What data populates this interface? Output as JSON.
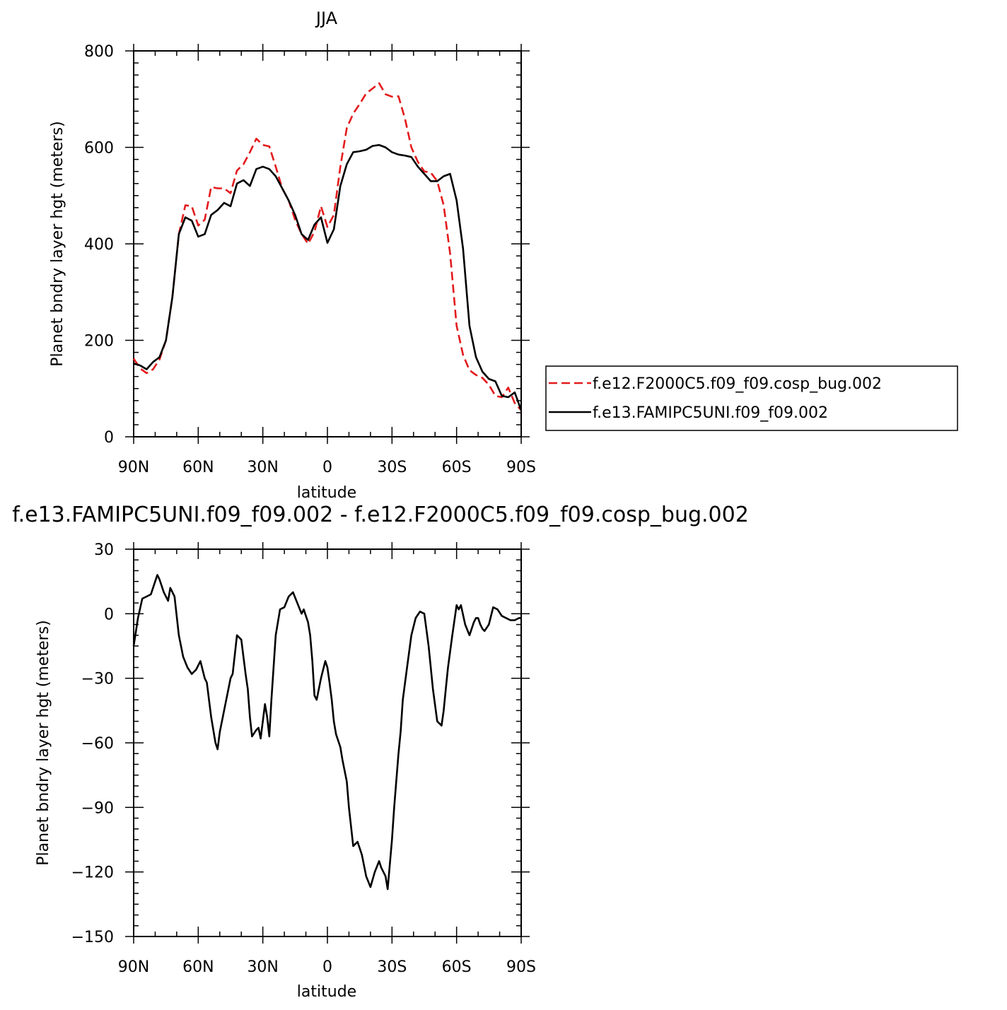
{
  "chart_data": [
    {
      "type": "line",
      "title": "JJA",
      "xlabel": "latitude",
      "ylabel": "Planet bndry layer hgt (meters)",
      "xlim": [
        90,
        -90
      ],
      "ylim": [
        0,
        800
      ],
      "xticks": [
        90,
        60,
        30,
        0,
        -30,
        -60,
        -90
      ],
      "xtick_labels": [
        "90N",
        "60N",
        "30N",
        "0",
        "30S",
        "60S",
        "90S"
      ],
      "yticks": [
        0,
        200,
        400,
        600,
        800
      ],
      "ytick_labels": [
        "0",
        "200",
        "400",
        "600",
        "800"
      ],
      "legend_position": "right",
      "series": [
        {
          "name": "f.e12.F2000C5.f09_f09.cosp_bug.002",
          "color": "#e31a1c",
          "dash": "dashed",
          "x": [
            90,
            87,
            84,
            81,
            78,
            75,
            72,
            69,
            66,
            63,
            60,
            57,
            54,
            51,
            48,
            45,
            42,
            39,
            36,
            33,
            30,
            27,
            24,
            21,
            18,
            15,
            12,
            9,
            6,
            3,
            0,
            -3,
            -6,
            -9,
            -12,
            -15,
            -18,
            -21,
            -24,
            -27,
            -30,
            -33,
            -36,
            -39,
            -42,
            -45,
            -48,
            -51,
            -54,
            -57,
            -60,
            -63,
            -66,
            -69,
            -72,
            -75,
            -78,
            -81,
            -84,
            -87,
            -90
          ],
          "y": [
            162,
            142,
            132,
            140,
            160,
            200,
            290,
            420,
            480,
            478,
            438,
            450,
            518,
            515,
            515,
            505,
            552,
            565,
            590,
            618,
            605,
            602,
            560,
            515,
            490,
            450,
            420,
            400,
            425,
            478,
            435,
            460,
            560,
            640,
            670,
            690,
            712,
            722,
            733,
            710,
            705,
            706,
            660,
            600,
            570,
            550,
            548,
            530,
            480,
            380,
            230,
            170,
            138,
            128,
            122,
            108,
            85,
            82,
            102,
            70,
            55
          ]
        },
        {
          "name": "f.e13.FAMIPC5UNI.f09_f09.002",
          "color": "#000000",
          "dash": "solid",
          "x": [
            90,
            87,
            84,
            81,
            78,
            75,
            72,
            69,
            66,
            63,
            60,
            57,
            54,
            51,
            48,
            45,
            42,
            39,
            36,
            33,
            30,
            27,
            24,
            21,
            18,
            15,
            12,
            9,
            6,
            3,
            0,
            -3,
            -6,
            -9,
            -12,
            -15,
            -18,
            -21,
            -24,
            -27,
            -30,
            -33,
            -36,
            -39,
            -42,
            -45,
            -48,
            -51,
            -54,
            -57,
            -60,
            -63,
            -66,
            -69,
            -72,
            -75,
            -78,
            -81,
            -84,
            -87,
            -90
          ],
          "y": [
            152,
            148,
            140,
            155,
            165,
            200,
            290,
            420,
            455,
            448,
            415,
            420,
            460,
            470,
            485,
            478,
            525,
            532,
            520,
            555,
            560,
            555,
            540,
            515,
            490,
            460,
            420,
            408,
            440,
            455,
            402,
            430,
            520,
            565,
            590,
            592,
            595,
            603,
            605,
            600,
            590,
            585,
            583,
            580,
            560,
            545,
            530,
            530,
            540,
            545,
            490,
            390,
            230,
            165,
            135,
            120,
            115,
            85,
            82,
            92,
            55
          ]
        }
      ]
    },
    {
      "type": "line",
      "title": "f.e13.FAMIPC5UNI.f09_f09.002 - f.e12.F2000C5.f09_f09.cosp_bug.002",
      "xlabel": "latitude",
      "ylabel": "Planet bndry layer hgt (meters)",
      "xlim": [
        90,
        -90
      ],
      "ylim": [
        -150,
        30
      ],
      "xticks": [
        90,
        60,
        30,
        0,
        -30,
        -60,
        -90
      ],
      "xtick_labels": [
        "90N",
        "60N",
        "30N",
        "0",
        "30S",
        "60S",
        "90S"
      ],
      "yticks": [
        -150,
        -120,
        -90,
        -60,
        -30,
        0,
        30
      ],
      "ytick_labels": [
        "−150",
        "−120",
        "−90",
        "−60",
        "−30",
        "0",
        "30"
      ],
      "series": [
        {
          "color": "#000000",
          "dash": "solid",
          "x": [
            90,
            88,
            86,
            84,
            82,
            80,
            79,
            78,
            76,
            74,
            73,
            71,
            69,
            67,
            65,
            63,
            61,
            59,
            57,
            56,
            54,
            52,
            51,
            50,
            48,
            46,
            45,
            44,
            42,
            40,
            38,
            37,
            36,
            35,
            33,
            32,
            31,
            29,
            28,
            27,
            26,
            24,
            22,
            20,
            18,
            16,
            14,
            12,
            11,
            10,
            9,
            8,
            7,
            6,
            5,
            3,
            1,
            0,
            -1,
            -2,
            -3,
            -4,
            -6,
            -7,
            -9,
            -10,
            -12,
            -14,
            -16,
            -18,
            -20,
            -22,
            -24,
            -25,
            -27,
            -28,
            -30,
            -31,
            -33,
            -34,
            -35,
            -37,
            -39,
            -41,
            -43,
            -45,
            -47,
            -49,
            -51,
            -53,
            -54,
            -55,
            -56,
            -58,
            -60,
            -61,
            -62,
            -64,
            -66,
            -68,
            -69,
            -70,
            -71,
            -72,
            -73,
            -75,
            -77,
            -79,
            -81,
            -83,
            -85,
            -87,
            -89,
            -90
          ],
          "y": [
            -15,
            -2,
            7,
            8,
            9,
            15,
            18,
            16,
            10,
            6,
            12,
            8,
            -10,
            -20,
            -25,
            -28,
            -26,
            -22,
            -30,
            -32,
            -48,
            -60,
            -63,
            -55,
            -45,
            -35,
            -30,
            -28,
            -10,
            -12,
            -28,
            -35,
            -48,
            -57,
            -54,
            -53,
            -58,
            -42,
            -48,
            -57,
            -40,
            -10,
            2,
            3,
            8,
            10,
            5,
            0,
            2,
            -1,
            -4,
            -10,
            -22,
            -38,
            -40,
            -30,
            -22,
            -25,
            -32,
            -40,
            -50,
            -56,
            -62,
            -68,
            -78,
            -90,
            -108,
            -106,
            -112,
            -122,
            -127,
            -120,
            -115,
            -118,
            -122,
            -128,
            -105,
            -90,
            -65,
            -55,
            -40,
            -25,
            -10,
            -2,
            1,
            0,
            -15,
            -35,
            -50,
            -52,
            -45,
            -35,
            -25,
            -10,
            4,
            2,
            4,
            -5,
            -10,
            -4,
            -2,
            -2,
            -5,
            -7,
            -8,
            -5,
            3,
            2,
            -1,
            -2,
            -3,
            -3,
            -2,
            -2
          ]
        }
      ]
    }
  ]
}
